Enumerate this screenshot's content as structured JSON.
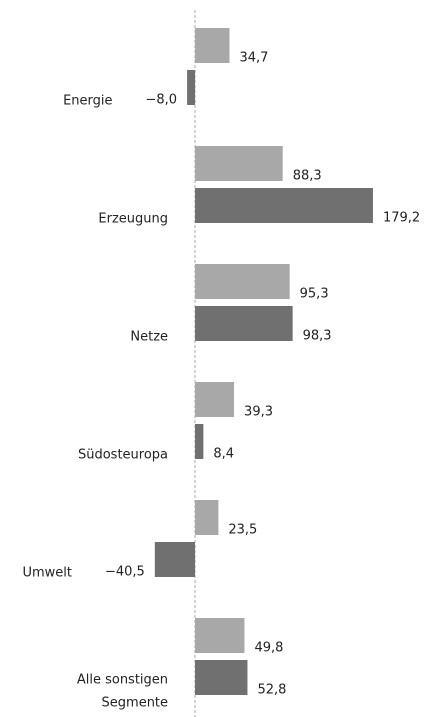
{
  "chart_data": {
    "type": "bar",
    "orientation": "horizontal",
    "categories": [
      "Energie",
      "Erzeugung",
      "Netze",
      "Südosteuropa",
      "Umwelt",
      "Alle sonstigen\nSegmente"
    ],
    "series": [
      {
        "color": "#a8a8a8",
        "values": [
          34.7,
          88.3,
          95.3,
          39.3,
          23.5,
          49.8
        ],
        "value_labels": [
          "34,7",
          "88,3",
          "95,3",
          "39,3",
          "23,5",
          "49,8"
        ]
      },
      {
        "color": "#707070",
        "values": [
          -8.0,
          179.2,
          98.3,
          8.4,
          -40.5,
          52.8
        ],
        "value_labels": [
          "−8,0",
          "179,2",
          "98,3",
          "8,4",
          "−40,5",
          "52,8"
        ]
      }
    ],
    "xlim": [
      -50,
      200
    ]
  }
}
